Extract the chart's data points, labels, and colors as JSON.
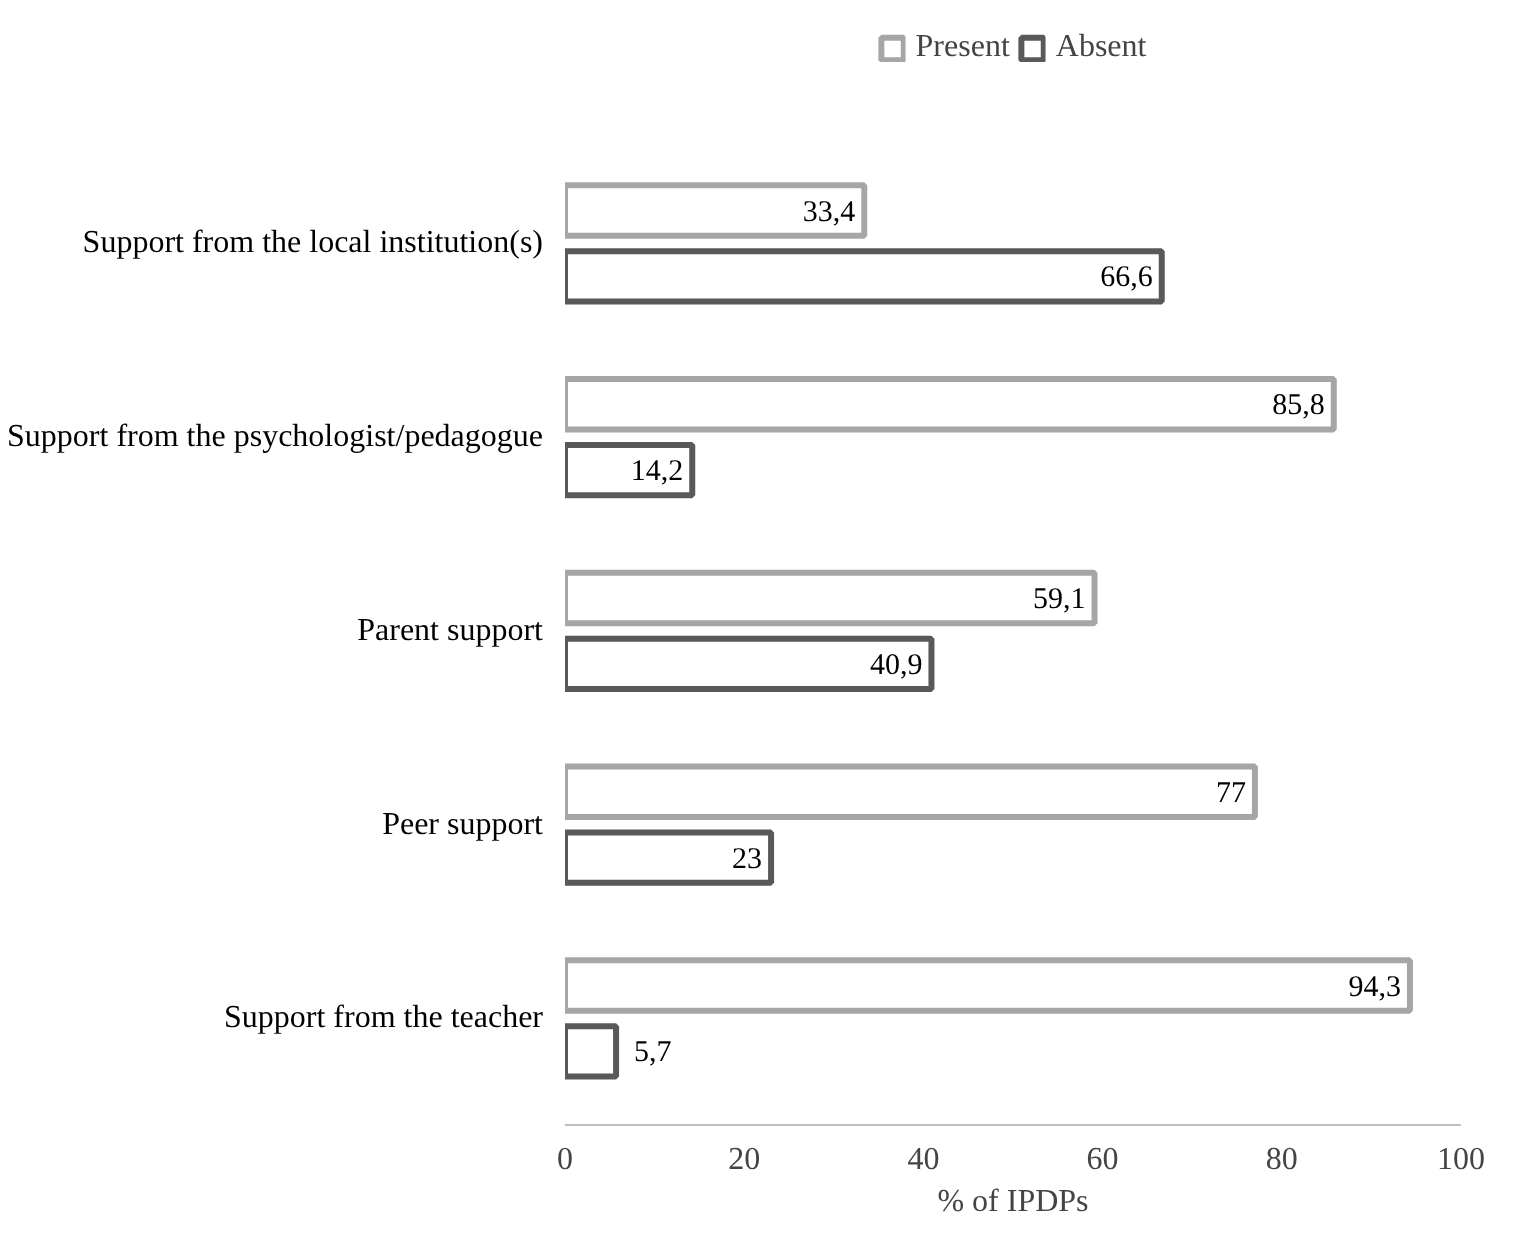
{
  "chart_data": {
    "type": "bar",
    "orientation": "horizontal",
    "xlabel": "% of IPDPs",
    "categories": [
      "Support from the local institution(s)",
      "Support from the psychologist/pedagogue",
      "Parent support",
      "Peer support",
      "Support from the teacher"
    ],
    "series": [
      {
        "name": "Present",
        "color": "#a6a6a6",
        "values": [
          33.4,
          85.8,
          59.1,
          77,
          94.3
        ],
        "value_labels": [
          "33,4",
          "85,8",
          "59,1",
          "77",
          "94,3"
        ]
      },
      {
        "name": "Absent",
        "color": "#595959",
        "values": [
          66.6,
          14.2,
          40.9,
          23,
          5.7
        ],
        "value_labels": [
          "66,6",
          "14,2",
          "40,9",
          "23",
          "5,7"
        ]
      }
    ],
    "xlim": [
      0,
      100
    ],
    "xticks": [
      0,
      20,
      40,
      60,
      80,
      100
    ],
    "grid": false,
    "legend": "top"
  }
}
